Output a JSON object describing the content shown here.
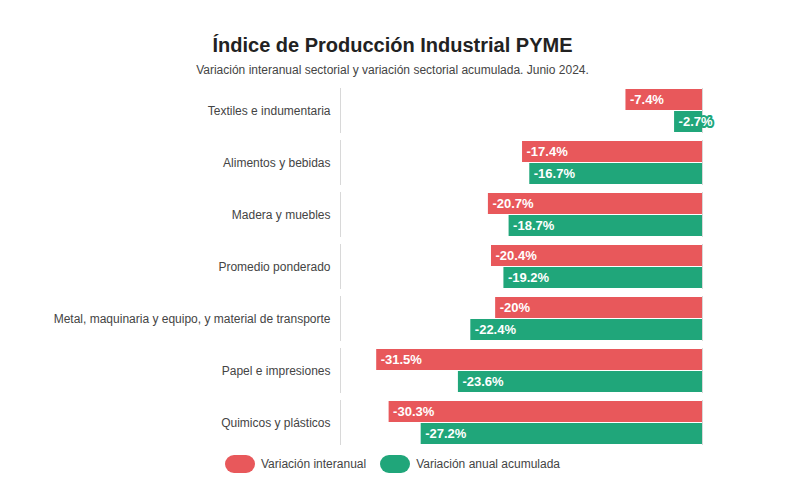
{
  "chart_data": {
    "type": "bar",
    "title": "Índice de Producción Industrial PYME",
    "subtitle": "Variación interanual sectorial y variación sectorial acumulada. Junio 2024.",
    "orientation": "horizontal",
    "categories": [
      "Textiles e indumentaria",
      "Alimentos y bebidas",
      "Madera y muebles",
      "Promedio ponderado",
      "Metal, maquinaria y equipo, y material de transporte",
      "Papel e impresiones",
      "Quimicos y plásticos"
    ],
    "series": [
      {
        "name": "Variación interanual",
        "color": "#e8585b",
        "values": [
          -7.4,
          -17.4,
          -20.7,
          -20.4,
          -20,
          -31.5,
          -30.3
        ],
        "value_labels": [
          "-7.4%",
          "-17.4%",
          "-20.7%",
          "-20.4%",
          "-20%",
          "-31.5%",
          "-30.3%"
        ]
      },
      {
        "name": "Variación anual acumulada",
        "color": "#20a67a",
        "values": [
          -2.7,
          -16.7,
          -18.7,
          -19.2,
          -22.4,
          -23.6,
          -27.2
        ],
        "value_labels": [
          "-2.7%",
          "-16.7%",
          "-18.7%",
          "-19.2%",
          "-22.4%",
          "-23.6%",
          "-27.2%"
        ]
      }
    ],
    "xlim": [
      -35,
      0
    ],
    "xticks": [],
    "tick_labels": "y",
    "data_labels": true,
    "legend": "bottom",
    "grid": false
  }
}
